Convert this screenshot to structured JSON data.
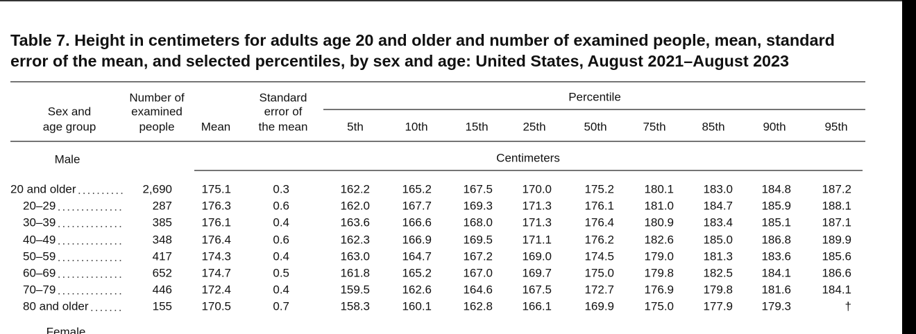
{
  "title_lines": [
    "Table 7. Height in centimeters for adults age 20 and older and number of examined people, mean, standard",
    "error of the mean, and selected percentiles, by sex and age: United States, August 2021–August 2023"
  ],
  "headers": {
    "sex_age": [
      "Sex and",
      "age group"
    ],
    "examined": [
      "Number of",
      "examined",
      "people"
    ],
    "mean": [
      "Mean"
    ],
    "se": [
      "Standard",
      "error of",
      "the mean"
    ],
    "percentile": "Percentile",
    "percentiles": [
      "5th",
      "10th",
      "15th",
      "25th",
      "50th",
      "75th",
      "85th",
      "90th",
      "95th"
    ]
  },
  "unit": "Centimeters",
  "sections": [
    {
      "label": "Male",
      "rows": [
        {
          "label": "20 and older",
          "values": [
            "2,690",
            "175.1",
            "0.3",
            "162.2",
            "165.2",
            "167.5",
            "170.0",
            "175.2",
            "180.1",
            "183.0",
            "184.8",
            "187.2"
          ]
        },
        {
          "label": "20–29",
          "values": [
            "287",
            "176.3",
            "0.6",
            "162.0",
            "167.7",
            "169.3",
            "171.3",
            "176.1",
            "181.0",
            "184.7",
            "185.9",
            "188.1"
          ]
        },
        {
          "label": "30–39",
          "values": [
            "385",
            "176.1",
            "0.4",
            "163.6",
            "166.6",
            "168.0",
            "171.3",
            "176.4",
            "180.9",
            "183.4",
            "185.1",
            "187.1"
          ]
        },
        {
          "label": "40–49",
          "values": [
            "348",
            "176.4",
            "0.6",
            "162.3",
            "166.9",
            "169.5",
            "171.1",
            "176.2",
            "182.6",
            "185.0",
            "186.8",
            "189.9"
          ]
        },
        {
          "label": "50–59",
          "values": [
            "417",
            "174.3",
            "0.4",
            "163.0",
            "164.7",
            "167.2",
            "169.0",
            "174.5",
            "179.0",
            "181.3",
            "183.6",
            "185.6"
          ]
        },
        {
          "label": "60–69",
          "values": [
            "652",
            "174.7",
            "0.5",
            "161.8",
            "165.2",
            "167.0",
            "169.7",
            "175.0",
            "179.8",
            "182.5",
            "184.1",
            "186.6"
          ]
        },
        {
          "label": "70–79",
          "values": [
            "446",
            "172.4",
            "0.4",
            "159.5",
            "162.6",
            "164.6",
            "167.5",
            "172.7",
            "176.9",
            "179.8",
            "181.6",
            "184.1"
          ]
        },
        {
          "label": "80 and older",
          "values": [
            "155",
            "170.5",
            "0.7",
            "158.3",
            "160.1",
            "162.8",
            "166.1",
            "169.9",
            "175.0",
            "177.9",
            "179.3",
            "†"
          ]
        }
      ]
    },
    {
      "label": "Female",
      "rows": []
    }
  ]
}
